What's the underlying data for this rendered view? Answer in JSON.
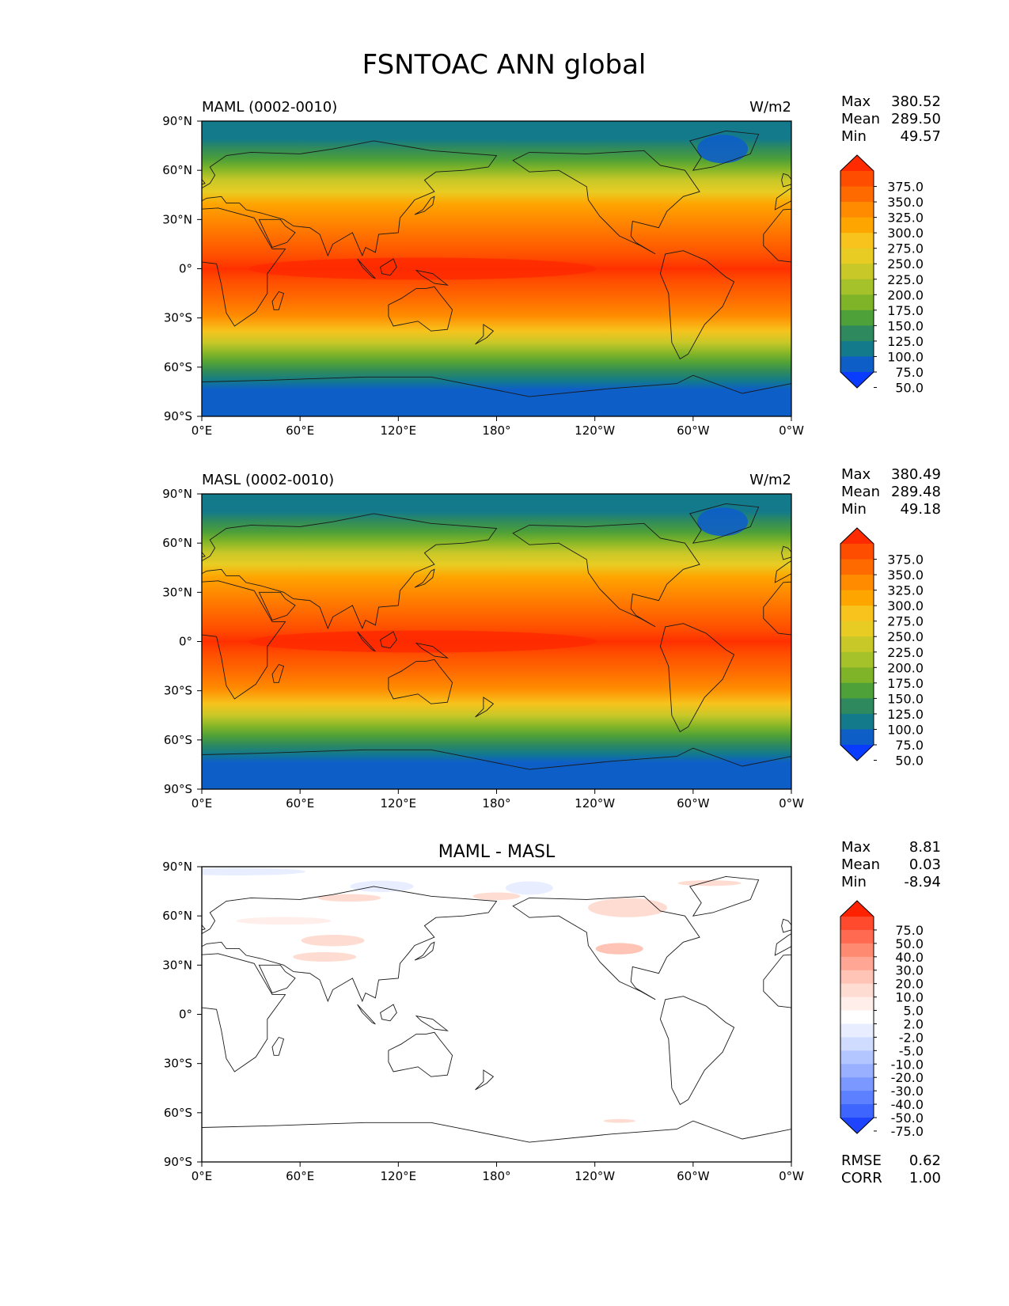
{
  "figure_title": "FSNTOAC ANN global",
  "lat_ticks": [
    "90°N",
    "60°N",
    "30°N",
    "0°",
    "30°S",
    "60°S",
    "90°S"
  ],
  "lon_ticks": [
    "0°E",
    "60°E",
    "120°E",
    "180°",
    "120°W",
    "60°W",
    "0°W"
  ],
  "panels": [
    {
      "title_left": "MAML (0002-0010)",
      "title_center": "",
      "units": "W/m2",
      "stats": [
        {
          "label": "Max",
          "value": "380.52"
        },
        {
          "label": "Mean",
          "value": "289.50"
        },
        {
          "label": "Min",
          "value": "49.57"
        }
      ],
      "colorbar_labels": [
        "375.0",
        "350.0",
        "325.0",
        "300.0",
        "275.0",
        "250.0",
        "225.0",
        "200.0",
        "175.0",
        "150.0",
        "125.0",
        "100.0",
        "75.0",
        "50.0"
      ],
      "colorbar_colors": [
        "#ff2a00",
        "#ff4d00",
        "#ff6a00",
        "#ff8c00",
        "#ffa500",
        "#f7c31c",
        "#e8cc23",
        "#c8c828",
        "#a6c22a",
        "#7fb428",
        "#4ea038",
        "#2e8a5e",
        "#137a8c",
        "#0e5ec8",
        "#0a3cff"
      ],
      "rmse": null,
      "corr": null
    },
    {
      "title_left": "MASL (0002-0010)",
      "title_center": "",
      "units": "W/m2",
      "stats": [
        {
          "label": "Max",
          "value": "380.49"
        },
        {
          "label": "Mean",
          "value": "289.48"
        },
        {
          "label": "Min",
          "value": "49.18"
        }
      ],
      "colorbar_labels": [
        "375.0",
        "350.0",
        "325.0",
        "300.0",
        "275.0",
        "250.0",
        "225.0",
        "200.0",
        "175.0",
        "150.0",
        "125.0",
        "100.0",
        "75.0",
        "50.0"
      ],
      "colorbar_colors": [
        "#ff2a00",
        "#ff4d00",
        "#ff6a00",
        "#ff8c00",
        "#ffa500",
        "#f7c31c",
        "#e8cc23",
        "#c8c828",
        "#a6c22a",
        "#7fb428",
        "#4ea038",
        "#2e8a5e",
        "#137a8c",
        "#0e5ec8",
        "#0a3cff"
      ],
      "rmse": null,
      "corr": null
    },
    {
      "title_left": "",
      "title_center": "MAML - MASL",
      "units": "",
      "stats": [
        {
          "label": "Max",
          "value": "8.81"
        },
        {
          "label": "Mean",
          "value": "0.03"
        },
        {
          "label": "Min",
          "value": "-8.94"
        }
      ],
      "colorbar_labels": [
        "75.0",
        "50.0",
        "40.0",
        "30.0",
        "20.0",
        "10.0",
        "5.0",
        "2.0",
        "-2.0",
        "-5.0",
        "-10.0",
        "-20.0",
        "-30.0",
        "-40.0",
        "-50.0",
        "-75.0"
      ],
      "colorbar_colors": [
        "#ff2200",
        "#ff4a2e",
        "#ff6a50",
        "#ff8a72",
        "#ffa694",
        "#ffc4b6",
        "#ffdcd2",
        "#ffeeea",
        "#ffffff",
        "#e8eeff",
        "#d0dcff",
        "#b4c6ff",
        "#98b0ff",
        "#7a98ff",
        "#5c80ff",
        "#3e66ff",
        "#1e44ff"
      ],
      "rmse": {
        "label": "RMSE",
        "value": "0.62"
      },
      "corr": {
        "label": "CORR",
        "value": "1.00"
      }
    }
  ]
}
